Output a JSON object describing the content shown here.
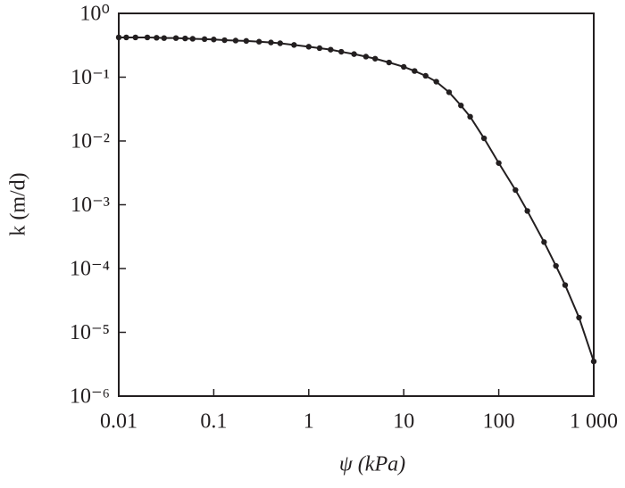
{
  "chart_data": {
    "type": "line",
    "xlabel": "ψ (kPa)",
    "ylabel": "k (m/d)",
    "log_x": true,
    "log_y": true,
    "markers": true,
    "xlim": [
      0.01,
      1000
    ],
    "ylim": [
      1e-06,
      1
    ],
    "xticks": [
      0.01,
      0.1,
      1,
      10,
      100,
      {
        "value": 1000,
        "label": "1 000"
      }
    ],
    "yticks": [
      {
        "value": 1,
        "label": "10⁰"
      },
      {
        "value": 0.1,
        "label": "10⁻¹"
      },
      {
        "value": 0.01,
        "label": "10⁻²"
      },
      {
        "value": 0.001,
        "label": "10⁻³"
      },
      {
        "value": 0.0001,
        "label": "10⁻⁴"
      },
      {
        "value": 1e-05,
        "label": "10⁻⁵"
      },
      {
        "value": 1e-06,
        "label": "10⁻⁶"
      }
    ],
    "color": "#231f20",
    "x": [
      0.01,
      0.012,
      0.015,
      0.02,
      0.025,
      0.03,
      0.04,
      0.05,
      0.06,
      0.08,
      0.1,
      0.13,
      0.17,
      0.22,
      0.3,
      0.4,
      0.5,
      0.7,
      1,
      1.3,
      1.7,
      2.2,
      3,
      4,
      5,
      7,
      10,
      13,
      17,
      22,
      30,
      40,
      50,
      70,
      100,
      150,
      200,
      300,
      400,
      500,
      700,
      1000
    ],
    "values": [
      0.42,
      0.42,
      0.42,
      0.42,
      0.415,
      0.41,
      0.41,
      0.405,
      0.4,
      0.395,
      0.39,
      0.38,
      0.375,
      0.37,
      0.36,
      0.35,
      0.34,
      0.32,
      0.3,
      0.285,
      0.27,
      0.25,
      0.23,
      0.21,
      0.195,
      0.17,
      0.145,
      0.125,
      0.105,
      0.085,
      0.058,
      0.036,
      0.024,
      0.011,
      0.0045,
      0.0017,
      0.0008,
      0.00026,
      0.00011,
      5.5e-05,
      1.7e-05,
      3.5e-06
    ]
  }
}
